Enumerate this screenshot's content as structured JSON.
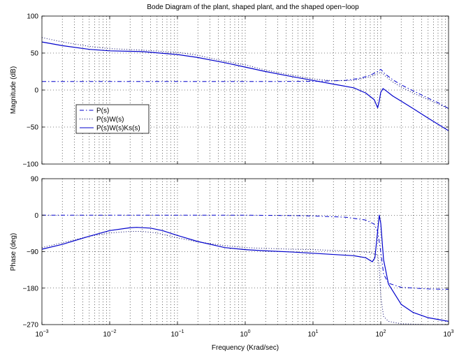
{
  "chart_data": {
    "type": "line",
    "title": "Bode Diagram of the plant, shaped plant, and the shaped open−loop",
    "xlabel": "Frequency (Krad/sec)",
    "xscale": "log",
    "xlim": [
      0.001,
      1000
    ],
    "x_tick_labels": [
      {
        "base": "10",
        "exp": "−3"
      },
      {
        "base": "10",
        "exp": "−2"
      },
      {
        "base": "10",
        "exp": "−1"
      },
      {
        "base": "10",
        "exp": "0"
      },
      {
        "base": "10",
        "exp": "1"
      },
      {
        "base": "10",
        "exp": "2"
      },
      {
        "base": "10",
        "exp": "3"
      }
    ],
    "grid": true,
    "legend": {
      "placement": "left-middle of magnitude panel",
      "entries": [
        "P(s)",
        "P(s)W(s)",
        "P(s)W(s)Ks(s)"
      ]
    },
    "panels": [
      {
        "id": "magnitude",
        "ylabel": "Magnitude (dB)",
        "ylim": [
          -100,
          100
        ],
        "y_ticks": [
          100,
          50,
          0,
          -50,
          -100
        ],
        "y_tick_labels": [
          "100",
          "50",
          "0",
          "−50",
          "−100"
        ],
        "series": [
          {
            "name": "P(s)",
            "style": "dashdot",
            "color": "#0000cc",
            "points": [
              [
                0.001,
                11.5
              ],
              [
                0.01,
                11.5
              ],
              [
                0.1,
                11.5
              ],
              [
                1,
                11.5
              ],
              [
                10,
                11.7
              ],
              [
                30,
                13
              ],
              [
                50,
                16
              ],
              [
                70,
                20
              ],
              [
                90,
                25
              ],
              [
                100,
                28
              ],
              [
                115,
                22
              ],
              [
                150,
                14
              ],
              [
                200,
                7
              ],
              [
                300,
                -1
              ],
              [
                500,
                -11
              ],
              [
                700,
                -17
              ],
              [
                1000,
                -25
              ]
            ]
          },
          {
            "name": "P(s)W(s)",
            "style": "dotted",
            "color": "#000066",
            "points": [
              [
                0.001,
                71
              ],
              [
                0.002,
                65
              ],
              [
                0.005,
                59
              ],
              [
                0.01,
                56
              ],
              [
                0.03,
                54
              ],
              [
                0.1,
                51
              ],
              [
                0.2,
                47
              ],
              [
                0.5,
                39
              ],
              [
                1,
                34
              ],
              [
                2,
                27
              ],
              [
                5,
                20
              ],
              [
                10,
                15
              ],
              [
                20,
                12.5
              ],
              [
                40,
                13
              ],
              [
                70,
                18
              ],
              [
                90,
                22
              ],
              [
                100,
                24
              ],
              [
                120,
                18
              ],
              [
                150,
                11
              ],
              [
                200,
                4
              ],
              [
                300,
                -4
              ],
              [
                500,
                -13
              ],
              [
                1000,
                -25
              ]
            ]
          },
          {
            "name": "P(s)W(s)Ks(s)",
            "style": "solid",
            "color": "#0000cc",
            "points": [
              [
                0.001,
                65
              ],
              [
                0.002,
                60
              ],
              [
                0.005,
                55
              ],
              [
                0.01,
                53
              ],
              [
                0.03,
                52
              ],
              [
                0.1,
                48
              ],
              [
                0.2,
                44
              ],
              [
                0.5,
                37
              ],
              [
                1,
                31
              ],
              [
                2,
                25
              ],
              [
                5,
                18
              ],
              [
                10,
                13
              ],
              [
                20,
                8
              ],
              [
                40,
                3
              ],
              [
                60,
                -4
              ],
              [
                80,
                -13
              ],
              [
                90,
                -24
              ],
              [
                95,
                -15
              ],
              [
                100,
                -3
              ],
              [
                108,
                2
              ],
              [
                120,
                -1
              ],
              [
                150,
                -8
              ],
              [
                200,
                -15
              ],
              [
                300,
                -25
              ],
              [
                500,
                -38
              ],
              [
                1000,
                -55
              ]
            ]
          }
        ]
      },
      {
        "id": "phase",
        "ylabel": "Phase (deg)",
        "ylim": [
          -270,
          90
        ],
        "y_ticks": [
          90,
          0,
          -90,
          -180,
          -270
        ],
        "y_tick_labels": [
          "90",
          "0",
          "−90",
          "−180",
          "−270"
        ],
        "series": [
          {
            "name": "P(s)",
            "style": "dashdot",
            "color": "#0000cc",
            "points": [
              [
                0.001,
                0
              ],
              [
                1,
                0
              ],
              [
                5,
                -1
              ],
              [
                10,
                -2
              ],
              [
                30,
                -5
              ],
              [
                60,
                -12
              ],
              [
                80,
                -22
              ],
              [
                90,
                -40
              ],
              [
                100,
                -90
              ],
              [
                110,
                -145
              ],
              [
                130,
                -168
              ],
              [
                200,
                -178
              ],
              [
                500,
                -182
              ],
              [
                1000,
                -183
              ]
            ]
          },
          {
            "name": "P(s)W(s)",
            "style": "dotted",
            "color": "#000066",
            "points": [
              [
                0.001,
                -80
              ],
              [
                0.002,
                -68
              ],
              [
                0.005,
                -52
              ],
              [
                0.01,
                -44
              ],
              [
                0.02,
                -40
              ],
              [
                0.03,
                -40
              ],
              [
                0.05,
                -44
              ],
              [
                0.1,
                -56
              ],
              [
                0.2,
                -66
              ],
              [
                0.5,
                -75
              ],
              [
                1,
                -80
              ],
              [
                2,
                -82
              ],
              [
                5,
                -84
              ],
              [
                10,
                -85
              ],
              [
                20,
                -87
              ],
              [
                40,
                -89
              ],
              [
                70,
                -92
              ],
              [
                90,
                -98
              ],
              [
                95,
                -130
              ],
              [
                100,
                -200
              ],
              [
                110,
                -250
              ],
              [
                130,
                -262
              ],
              [
                200,
                -268
              ],
              [
                500,
                -270
              ],
              [
                1000,
                -270
              ]
            ]
          },
          {
            "name": "P(s)W(s)Ks(s)",
            "style": "solid",
            "color": "#0000cc",
            "points": [
              [
                0.001,
                -84
              ],
              [
                0.002,
                -72
              ],
              [
                0.005,
                -52
              ],
              [
                0.01,
                -38
              ],
              [
                0.02,
                -31
              ],
              [
                0.025,
                -30
              ],
              [
                0.04,
                -32
              ],
              [
                0.06,
                -38
              ],
              [
                0.1,
                -50
              ],
              [
                0.2,
                -65
              ],
              [
                0.5,
                -80
              ],
              [
                1,
                -85
              ],
              [
                2,
                -88
              ],
              [
                5,
                -91
              ],
              [
                10,
                -94
              ],
              [
                20,
                -97
              ],
              [
                40,
                -100
              ],
              [
                60,
                -105
              ],
              [
                75,
                -115
              ],
              [
                82,
                -105
              ],
              [
                88,
                -55
              ],
              [
                95,
                0
              ],
              [
                100,
                -20
              ],
              [
                110,
                -110
              ],
              [
                130,
                -170
              ],
              [
                200,
                -220
              ],
              [
                300,
                -240
              ],
              [
                500,
                -253
              ],
              [
                1000,
                -262
              ]
            ]
          }
        ]
      }
    ]
  }
}
